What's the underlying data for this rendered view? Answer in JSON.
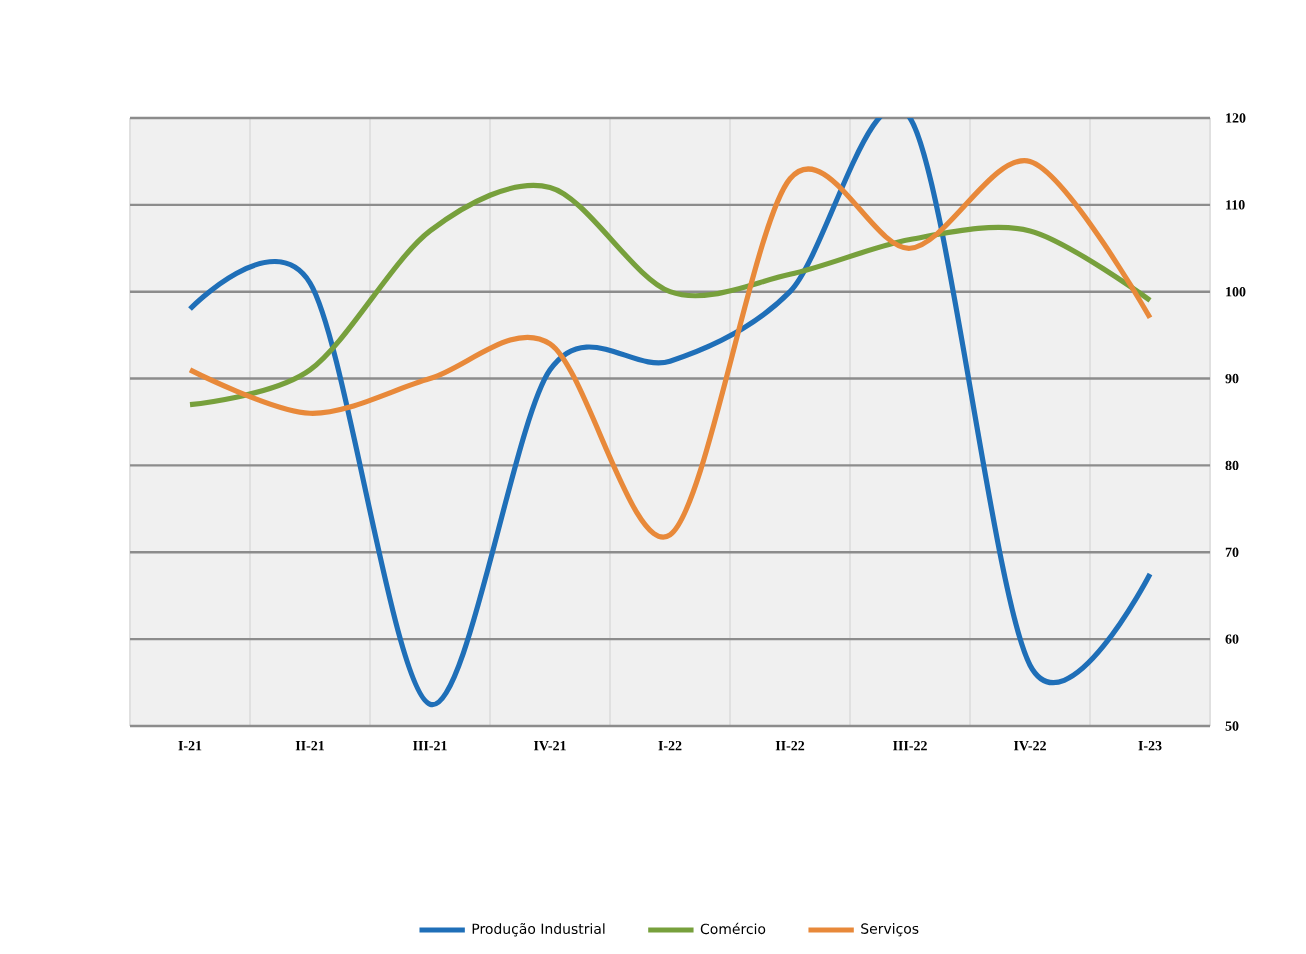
{
  "chart_data": {
    "type": "line",
    "categories": [
      "I-21",
      "II-21",
      "III-21",
      "IV-21",
      "I-22",
      "II-22",
      "III-22",
      "IV-22",
      "I-23"
    ],
    "series": [
      {
        "name": "Produção Industrial",
        "color": "#1f6fb8",
        "values": [
          98,
          101,
          52.5,
          91,
          92,
          100,
          120,
          57,
          67.5
        ]
      },
      {
        "name": "Comércio",
        "color": "#77a03c",
        "values": [
          87,
          91,
          107,
          112,
          100,
          102,
          106,
          107,
          99
        ]
      },
      {
        "name": "Serviços",
        "color": "#e8893a",
        "values": [
          91,
          86,
          90,
          94,
          72,
          113,
          105,
          115,
          97
        ]
      }
    ],
    "ylim": [
      50,
      120
    ],
    "yticks": [
      50,
      60,
      70,
      80,
      90,
      100,
      110,
      120
    ],
    "grid": true,
    "legend": "bottom",
    "marker": "none",
    "line_style": "solid"
  }
}
